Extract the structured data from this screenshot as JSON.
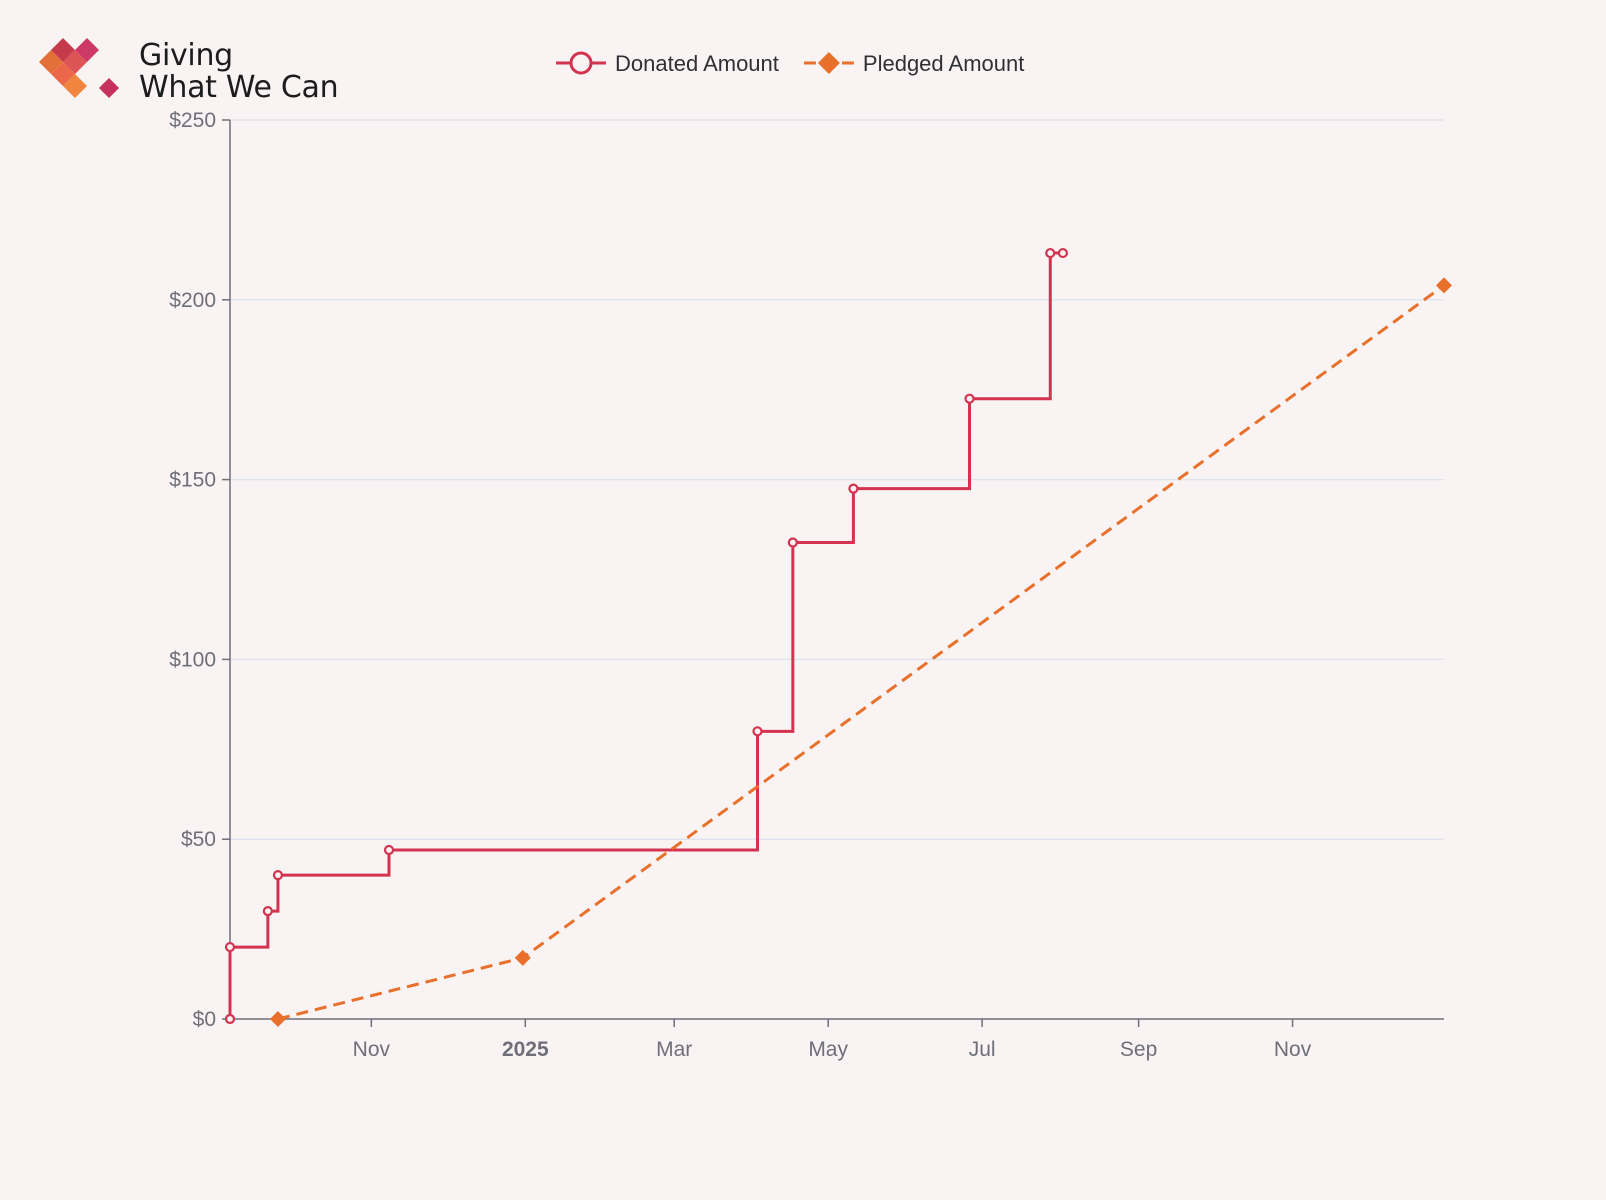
{
  "brand": {
    "name_line1": "Giving",
    "name_line2": "What We Can",
    "logo_colors": [
      "#c12a3e",
      "#d94548",
      "#c8285a",
      "#e06428",
      "#ea5a3c",
      "#f07a30",
      "#c0204e"
    ]
  },
  "chart_data": {
    "type": "line",
    "title": "",
    "xlabel": "",
    "ylabel": "",
    "x_range": [
      "2024-09-06",
      "2025-12-31"
    ],
    "ylim": [
      0,
      250
    ],
    "y_ticks": [
      0,
      50,
      100,
      150,
      200,
      250
    ],
    "y_tick_labels": [
      "$0",
      "$50",
      "$100",
      "$150",
      "$200",
      "$250"
    ],
    "x_ticks": [
      "2024-11-01",
      "2025-01-01",
      "2025-03-01",
      "2025-05-01",
      "2025-07-01",
      "2025-09-01",
      "2025-11-01"
    ],
    "x_tick_labels": [
      "Nov",
      "2025",
      "Mar",
      "May",
      "Jul",
      "Sep",
      "Nov"
    ],
    "grid": "horizontal",
    "legend_position": "top-center",
    "series": [
      {
        "name": "Donated Amount",
        "style": "step-after",
        "marker": "hollow-circle",
        "color": "#d3334f",
        "points": [
          [
            "2024-09-06",
            0
          ],
          [
            "2024-09-06",
            20
          ],
          [
            "2024-09-21",
            30
          ],
          [
            "2024-09-25",
            40
          ],
          [
            "2024-11-08",
            47
          ],
          [
            "2025-04-03",
            80
          ],
          [
            "2025-04-17",
            132.5
          ],
          [
            "2025-05-11",
            147.5
          ],
          [
            "2025-06-26",
            172.5
          ],
          [
            "2025-07-28",
            213
          ],
          [
            "2025-08-02",
            213
          ]
        ]
      },
      {
        "name": "Pledged Amount",
        "style": "dashed",
        "marker": "diamond",
        "color": "#e8702a",
        "points": [
          [
            "2024-09-25",
            0
          ],
          [
            "2024-12-31",
            17
          ],
          [
            "2025-12-31",
            204
          ]
        ]
      }
    ]
  }
}
